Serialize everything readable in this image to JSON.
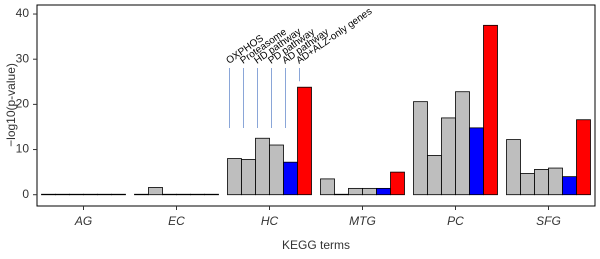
{
  "chart_data": {
    "type": "bar",
    "x_label": "KEGG terms",
    "y_label": "−log10(p-value)",
    "categories": [
      "AG",
      "EC",
      "HC",
      "MTG",
      "PC",
      "SFG"
    ],
    "series": [
      {
        "name": "OXPHOS",
        "color": "#bebebe",
        "values": [
          0.1,
          0.1,
          8,
          3.5,
          20.6,
          12.2
        ]
      },
      {
        "name": "Proteasome",
        "color": "#bebebe",
        "values": [
          0.1,
          1.6,
          7.8,
          0.1,
          8.7,
          4.7
        ]
      },
      {
        "name": "HD pathway",
        "color": "#bebebe",
        "values": [
          0.1,
          0.1,
          12.5,
          1.4,
          17,
          5.6
        ]
      },
      {
        "name": "PD pathway",
        "color": "#bebebe",
        "values": [
          0.1,
          0.1,
          11,
          1.4,
          22.8,
          5.9
        ]
      },
      {
        "name": "AD pathway",
        "color": "#0000ff",
        "values": [
          0.1,
          0.1,
          7.2,
          1.4,
          14.8,
          4.0
        ]
      },
      {
        "name": "AD+ALZ-only genes",
        "color": "#ff0000",
        "values": [
          0.1,
          0.1,
          23.8,
          5,
          37.5,
          16.6
        ]
      }
    ],
    "ylim": [
      -2.5,
      42
    ],
    "yticks": [
      0,
      10,
      20,
      30,
      40
    ],
    "grid": false
  }
}
